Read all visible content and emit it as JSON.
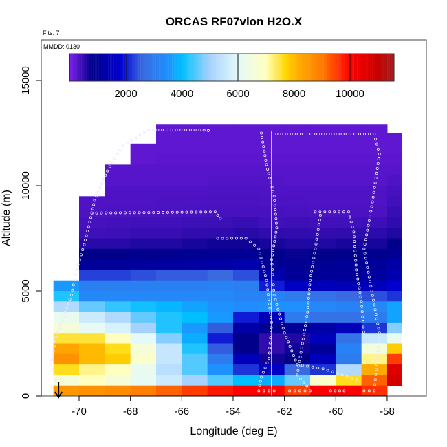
{
  "chart_data": {
    "type": "heatmap",
    "title": "ORCAS RF07vlon H2O.X",
    "subtitle_left": "Flts: 7",
    "annotation": "MMDD: 0130",
    "xlabel": "Longitude (deg E)",
    "ylabel": "Altitude (m)",
    "xlim": [
      -71.47,
      -56.47
    ],
    "ylim": [
      0,
      16900
    ],
    "x_ticks": [
      -70,
      -68,
      -66,
      -64,
      -62,
      -60,
      -58
    ],
    "x_tick_labels": [
      "-70",
      "-68",
      "-66",
      "-64",
      "-62",
      "-60",
      "-58"
    ],
    "y_ticks": [
      0,
      5000,
      10000,
      15000
    ],
    "y_tick_labels": [
      "0",
      "5000",
      "10000",
      "15000"
    ],
    "colorbar": {
      "range": [
        0,
        11570
      ],
      "ticks": [
        2000,
        4000,
        6000,
        8000,
        10000
      ],
      "tick_labels": [
        "2000",
        "4000",
        "6000",
        "8000",
        "10000"
      ],
      "stops": [
        [
          0,
          "#7f1fe8"
        ],
        [
          800,
          "#00008b"
        ],
        [
          1800,
          "#0000d0"
        ],
        [
          2600,
          "#3a6ae0"
        ],
        [
          3500,
          "#1e90ff"
        ],
        [
          4000,
          "#00bfff"
        ],
        [
          5000,
          "#a6d2ff"
        ],
        [
          6000,
          "#e4fafa"
        ],
        [
          7000,
          "#ffffc0"
        ],
        [
          7700,
          "#ffd700"
        ],
        [
          8100,
          "#ffb000"
        ],
        [
          9000,
          "#ff7a00"
        ],
        [
          10000,
          "#ff0000"
        ],
        [
          11000,
          "#c80000"
        ],
        [
          11570,
          "#a02020"
        ]
      ]
    },
    "lon_bins": [
      -71,
      -70,
      -69,
      -68,
      -67,
      -66,
      -65,
      -64,
      -63,
      -62,
      -61,
      -60,
      -59,
      -58
    ],
    "lon_bin_width": 1,
    "alt_bin_height": 500,
    "alt_bins_top_down": [
      13000,
      12500,
      12000,
      11500,
      11000,
      10500,
      10000,
      9500,
      9000,
      8500,
      8000,
      7500,
      7000,
      6500,
      6000,
      5500,
      5000,
      4500,
      4000,
      3500,
      3000,
      2500,
      2000,
      1500,
      1000,
      500,
      0
    ],
    "values": [
      [
        null,
        null,
        null,
        null,
        null,
        200,
        200,
        200,
        200,
        null,
        null,
        null,
        null,
        null
      ],
      [
        null,
        null,
        null,
        null,
        200,
        200,
        200,
        200,
        200,
        200,
        200,
        200,
        200,
        null
      ],
      [
        null,
        null,
        null,
        null,
        200,
        200,
        200,
        200,
        200,
        200,
        200,
        200,
        200,
        200
      ],
      [
        null,
        null,
        null,
        200,
        200,
        200,
        200,
        200,
        200,
        200,
        200,
        200,
        200,
        200
      ],
      [
        null,
        null,
        null,
        200,
        220,
        220,
        220,
        220,
        220,
        220,
        220,
        220,
        220,
        220
      ],
      [
        null,
        null,
        250,
        250,
        250,
        250,
        250,
        250,
        250,
        250,
        250,
        250,
        250,
        250
      ],
      [
        null,
        null,
        260,
        260,
        260,
        260,
        280,
        280,
        280,
        260,
        260,
        260,
        260,
        300
      ],
      [
        null,
        null,
        300,
        300,
        300,
        300,
        320,
        320,
        300,
        300,
        300,
        300,
        300,
        350
      ],
      [
        null,
        300,
        300,
        300,
        320,
        320,
        330,
        330,
        320,
        320,
        300,
        300,
        300,
        400
      ],
      [
        null,
        320,
        330,
        330,
        330,
        340,
        350,
        350,
        350,
        340,
        330,
        330,
        330,
        450
      ],
      [
        null,
        350,
        380,
        400,
        400,
        420,
        420,
        450,
        400,
        420,
        400,
        400,
        420,
        500
      ],
      [
        null,
        400,
        420,
        450,
        450,
        480,
        500,
        550,
        500,
        480,
        480,
        500,
        520,
        600
      ],
      [
        null,
        550,
        550,
        600,
        600,
        650,
        700,
        700,
        650,
        600,
        600,
        650,
        650,
        800
      ],
      [
        null,
        800,
        800,
        850,
        850,
        900,
        900,
        950,
        800,
        750,
        800,
        800,
        850,
        950
      ],
      [
        null,
        1000,
        1000,
        1050,
        1100,
        1150,
        1200,
        1300,
        1000,
        900,
        900,
        1000,
        1000,
        1200
      ],
      [
        null,
        2300,
        2300,
        2400,
        2500,
        2500,
        2600,
        2400,
        1300,
        1000,
        1000,
        1000,
        1100,
        1300
      ],
      [
        3600,
        3100,
        3100,
        3100,
        3100,
        3100,
        3200,
        3100,
        2000,
        1600,
        1500,
        1400,
        1500,
        1800
      ],
      [
        4200,
        3300,
        3300,
        3300,
        3300,
        3300,
        3300,
        3200,
        3200,
        3000,
        2800,
        2600,
        2400,
        2200
      ],
      [
        5200,
        4600,
        4300,
        4100,
        3900,
        3700,
        3500,
        3400,
        3500,
        3500,
        3300,
        3200,
        3300,
        3700
      ],
      [
        6200,
        5600,
        5200,
        4600,
        4200,
        4000,
        3600,
        2000,
        1500,
        3000,
        2800,
        2800,
        3000,
        3700
      ],
      [
        6600,
        6100,
        5800,
        5000,
        4200,
        3600,
        2500,
        1200,
        900,
        1000,
        1200,
        1500,
        2200,
        4800
      ],
      [
        7500,
        7500,
        7000,
        6000,
        4800,
        3800,
        2000,
        800,
        500,
        600,
        1500,
        2800,
        5500,
        6200
      ],
      [
        8300,
        8000,
        7600,
        6600,
        5500,
        4200,
        2500,
        800,
        500,
        700,
        1000,
        3200,
        6500,
        7800
      ],
      [
        8600,
        8000,
        7800,
        6800,
        5500,
        4500,
        3000,
        1500,
        700,
        800,
        1500,
        3000,
        7200,
        9500
      ],
      [
        7600,
        7200,
        7000,
        6200,
        5300,
        4500,
        3500,
        2200,
        1600,
        2600,
        2200,
        5200,
        8200,
        10600
      ],
      [
        6600,
        7000,
        6600,
        6100,
        5600,
        5000,
        4500,
        4000,
        3800,
        4600,
        6800,
        7600,
        9200,
        10800
      ],
      [
        8500,
        8600,
        8700,
        8900,
        9200,
        9500,
        9800,
        10000,
        10000,
        9500,
        10000,
        10000,
        9600,
        null
      ]
    ],
    "vertical_line_lon": -62.5,
    "flight_track": [
      [
        [
          -67.3,
          12650
        ],
        [
          -65.3,
          12650
        ],
        [
          -64.8,
          12600
        ]
      ],
      [
        [
          -67.3,
          12650
        ],
        [
          -68.3,
          11900
        ],
        [
          -68.9,
          10700
        ],
        [
          -69.4,
          9300
        ],
        [
          -69.5,
          8700
        ],
        [
          -64.7,
          8750
        ],
        [
          -64.4,
          8300
        ]
      ],
      [
        [
          -69.5,
          8700
        ],
        [
          -69.8,
          7200
        ],
        [
          -70.1,
          6000
        ],
        [
          -70.3,
          4800
        ],
        [
          -70.6,
          3800
        ],
        [
          -70.9,
          2800
        ],
        [
          -71.1,
          1500
        ],
        [
          -70.8,
          300
        ]
      ],
      [
        [
          -64.6,
          7500
        ],
        [
          -63.5,
          7500
        ],
        [
          -63.0,
          7000
        ],
        [
          -62.7,
          5500
        ],
        [
          -62.5,
          3500
        ],
        [
          -62.6,
          1800
        ],
        [
          -62.9,
          900
        ],
        [
          -63.0,
          300
        ]
      ],
      [
        [
          -62.9,
          12500
        ],
        [
          -62.7,
          11000
        ],
        [
          -62.4,
          9500
        ],
        [
          -62.3,
          8000
        ],
        [
          -62.5,
          6500
        ],
        [
          -62.4,
          4800
        ],
        [
          -62.0,
          3000
        ],
        [
          -61.5,
          1500
        ],
        [
          -60.5,
          1300
        ],
        [
          -59.0,
          700
        ]
      ],
      [
        [
          -62.3,
          12450
        ],
        [
          -58.5,
          12450
        ],
        [
          -58.3,
          11500
        ],
        [
          -58.6,
          9000
        ],
        [
          -58.9,
          7000
        ],
        [
          -58.6,
          5000
        ],
        [
          -58.3,
          3000
        ],
        [
          -58.4,
          1500
        ],
        [
          -58.5,
          300
        ]
      ],
      [
        [
          -60.8,
          8750
        ],
        [
          -59.5,
          8750
        ],
        [
          -59.3,
          7800
        ],
        [
          -59.2,
          6000
        ],
        [
          -59.0,
          4500
        ],
        [
          -58.9,
          2800
        ]
      ],
      [
        [
          -60.6,
          8600
        ],
        [
          -60.8,
          7000
        ],
        [
          -61.0,
          5500
        ],
        [
          -61.1,
          4000
        ],
        [
          -61.3,
          2500
        ],
        [
          -61.5,
          1000
        ],
        [
          -61.0,
          300
        ]
      ],
      [
        [
          -63.0,
          250
        ],
        [
          -62.2,
          250
        ]
      ],
      [
        [
          -61.8,
          250
        ],
        [
          -60.8,
          250
        ]
      ],
      [
        [
          -60.2,
          250
        ],
        [
          -59.5,
          250
        ]
      ],
      [
        [
          -58.9,
          250
        ],
        [
          -58.3,
          250
        ]
      ]
    ],
    "arrow_lon": -70.8,
    "grid": false
  }
}
